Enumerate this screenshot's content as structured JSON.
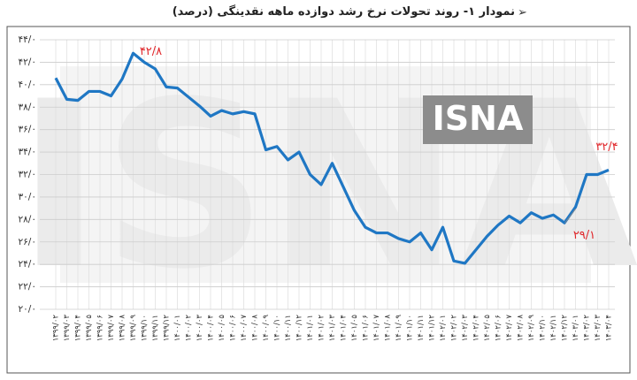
{
  "chart_data": {
    "type": "line",
    "title": "نمودار ۱- روند تحولات نرخ رشد دوازده ماهه نقدینگی (درصد)",
    "watermark": "ISNA",
    "categories": [
      "۱۳۹۹/۰۲",
      "۱۳۹۹/۰۳",
      "۱۳۹۹/۰۴",
      "۱۳۹۹/۰۵",
      "۱۳۹۹/۰۶",
      "۱۳۹۹/۰۷",
      "۱۳۹۹/۰۸",
      "۱۳۹۹/۰۹",
      "۱۳۹۹/۱۰",
      "۱۳۹۹/۱۱",
      "۱۳۹۹/۱۲",
      "۱۴۰۰/۰۱",
      "۱۴۰۰/۰۲",
      "۱۴۰۰/۰۳",
      "۱۴۰۰/۰۴",
      "۱۴۰۰/۰۵",
      "۱۴۰۰/۰۶",
      "۱۴۰۰/۰۷",
      "۱۴۰۰/۰۸",
      "۱۴۰۰/۰۹",
      "۱۴۰۰/۱۰",
      "۱۴۰۰/۱۱",
      "۱۴۰۰/۱۲",
      "۱۴۰۱/۰۱",
      "۱۴۰۱/۰۲",
      "۱۴۰۱/۰۳",
      "۱۴۰۱/۰۴",
      "۱۴۰۱/۰۵",
      "۱۴۰۱/۰۶",
      "۱۴۰۱/۰۷",
      "۱۴۰۱/۰۸",
      "۱۴۰۱/۰۹",
      "۱۴۰۱/۱۰",
      "۱۴۰۱/۱۱",
      "۱۴۰۱/۱۲",
      "۱۴۰۲/۰۱",
      "۱۴۰۲/۰۲",
      "۱۴۰۲/۰۳",
      "۱۴۰۲/۰۴",
      "۱۴۰۲/۰۵",
      "۱۴۰۲/۰۶",
      "۱۴۰۲/۰۷",
      "۱۴۰۲/۰۸",
      "۱۴۰۲/۰۹",
      "۱۴۰۲/۱۰",
      "۱۴۰۲/۱۱",
      "۱۴۰۲/۱۲",
      "۱۴۰۳/۰۱",
      "۱۴۰۳/۰۲",
      "۱۴۰۳/۰۳",
      "۱۴۰۳/۰۴"
    ],
    "values": [
      40.6,
      38.7,
      38.6,
      39.4,
      39.4,
      39.0,
      40.5,
      42.8,
      42.0,
      41.4,
      39.8,
      39.7,
      38.9,
      38.1,
      37.2,
      37.7,
      37.4,
      37.6,
      37.4,
      34.2,
      34.5,
      33.3,
      34.0,
      32.0,
      31.1,
      33.0,
      30.9,
      28.8,
      27.3,
      26.8,
      26.8,
      26.3,
      26.0,
      26.8,
      25.3,
      27.3,
      24.3,
      24.1,
      25.3,
      26.5,
      27.5,
      28.3,
      27.7,
      28.6,
      28.1,
      28.4,
      27.7,
      29.1,
      32.0,
      32.0,
      32.4
    ],
    "value_labels": [
      null,
      null,
      null,
      null,
      null,
      null,
      null,
      "۴۲/۸",
      null,
      null,
      null,
      null,
      null,
      null,
      null,
      null,
      null,
      null,
      null,
      null,
      null,
      null,
      null,
      null,
      null,
      null,
      null,
      null,
      null,
      null,
      null,
      null,
      null,
      null,
      null,
      null,
      null,
      null,
      null,
      null,
      null,
      null,
      null,
      null,
      null,
      null,
      null,
      "۲۹/۱",
      null,
      null,
      "۳۲/۴"
    ],
    "color": "#1f77c4",
    "label_color": "#e0262a",
    "ylim": [
      20,
      44
    ],
    "yticks": [
      {
        "value": 20,
        "label": "۲۰/۰"
      },
      {
        "value": 22,
        "label": "۲۲/۰"
      },
      {
        "value": 24,
        "label": "۲۴/۰"
      },
      {
        "value": 26,
        "label": "۲۶/۰"
      },
      {
        "value": 28,
        "label": "۲۸/۰"
      },
      {
        "value": 30,
        "label": "۳۰/۰"
      },
      {
        "value": 32,
        "label": "۳۲/۰"
      },
      {
        "value": 34,
        "label": "۳۴/۰"
      },
      {
        "value": 36,
        "label": "۳۶/۰"
      },
      {
        "value": 38,
        "label": "۳۸/۰"
      },
      {
        "value": 40,
        "label": "۴۰/۰"
      },
      {
        "value": 42,
        "label": "۴۲/۰"
      },
      {
        "value": 44,
        "label": "۴۴/۰"
      }
    ],
    "grid": true
  }
}
